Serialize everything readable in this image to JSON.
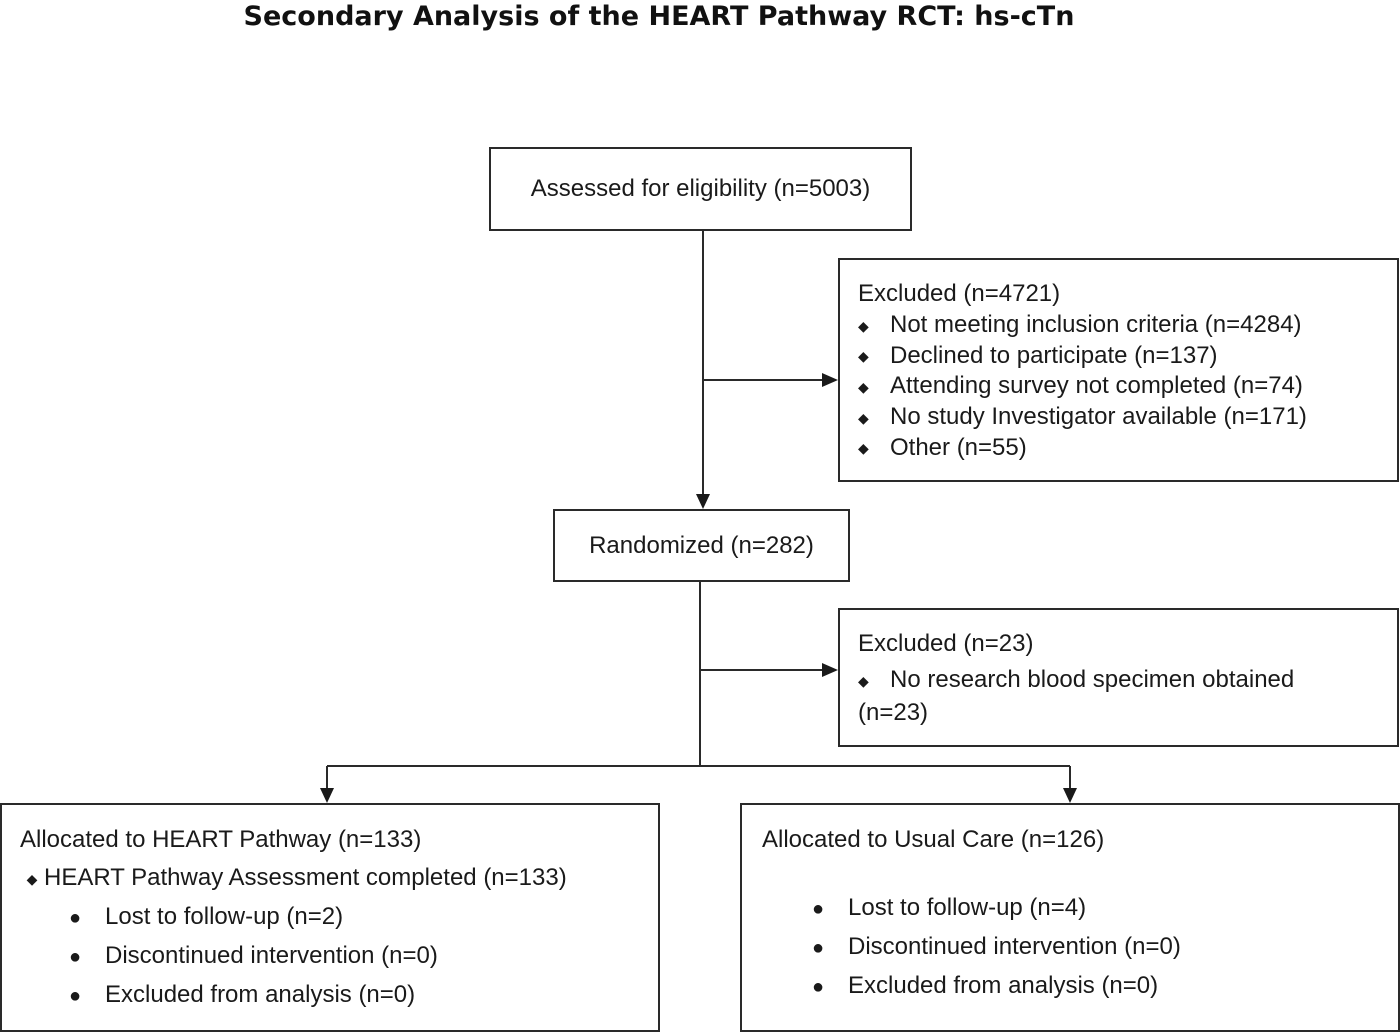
{
  "title": "Secondary Analysis of the HEART Pathway RCT: hs-cTn",
  "assessed": "Assessed for eligibility (n=5003)",
  "excluded1": {
    "header": "Excluded (n=4721)",
    "items": [
      "Not meeting inclusion criteria (n=4284)",
      "Declined to participate (n=137)",
      "Attending survey not completed (n=74)",
      "No study Investigator available (n=171)",
      "Other (n=55)"
    ]
  },
  "randomized": "Randomized (n=282)",
  "excluded2": {
    "header": "Excluded (n=23)",
    "item_line1": "No research blood specimen obtained",
    "item_line2": "(n=23)"
  },
  "heart_arm": {
    "header": "Allocated to HEART Pathway (n=133)",
    "assessment": "HEART Pathway Assessment completed (n=133)",
    "items": [
      "Lost to follow-up (n=2)",
      "Discontinued intervention (n=0)",
      "Excluded from analysis (n=0)"
    ]
  },
  "usual_arm": {
    "header": "Allocated to Usual Care (n=126)",
    "items": [
      "Lost to follow-up (n=4)",
      "Discontinued intervention (n=0)",
      "Excluded from analysis (n=0)"
    ]
  },
  "glyphs": {
    "diamond": "◆",
    "bullet": "●"
  }
}
